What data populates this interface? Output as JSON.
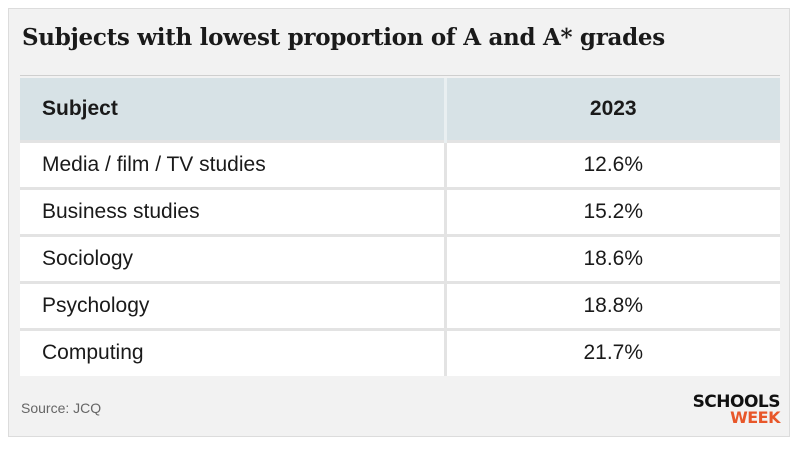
{
  "title": "Subjects with lowest proportion of A and A* grades",
  "source": "Source: JCQ",
  "logo": {
    "line1": "SCHOOLS",
    "line2": "WEEK",
    "accent_color": "#e8572a"
  },
  "colors": {
    "header_bg": "#d7e2e6",
    "card_bg": "#f2f2f2"
  },
  "chart_data": {
    "type": "table",
    "title": "Subjects with lowest proportion of A and A* grades",
    "columns": [
      "Subject",
      "2023"
    ],
    "rows": [
      [
        "Media / film / TV studies",
        "12.6%"
      ],
      [
        "Business studies",
        "15.2%"
      ],
      [
        "Sociology",
        "18.6%"
      ],
      [
        "Psychology",
        "18.8%"
      ],
      [
        "Computing",
        "21.7%"
      ]
    ]
  }
}
